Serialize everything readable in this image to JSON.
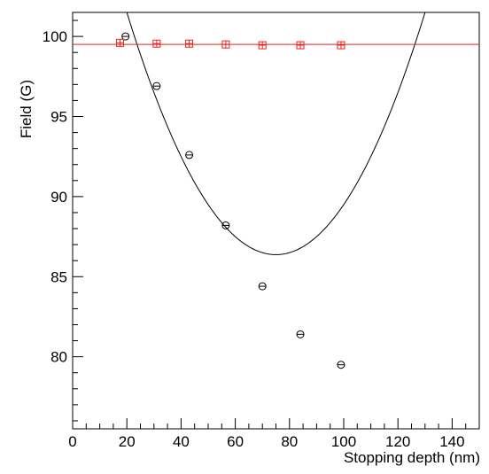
{
  "chart_data": {
    "type": "scatter",
    "title": "",
    "xlabel": "Stopping depth (nm)",
    "ylabel": "Field (G)",
    "xlim": [
      0,
      150
    ],
    "ylim": [
      75.5,
      101.5
    ],
    "x_ticks": [
      0,
      20,
      40,
      60,
      80,
      100,
      120,
      140
    ],
    "x_tick_labels": [
      "0",
      "20",
      "40",
      "60",
      "80",
      "100",
      "120",
      "140"
    ],
    "y_ticks": [
      80,
      85,
      90,
      95,
      100
    ],
    "y_tick_labels": [
      "80",
      "85",
      "90",
      "95",
      "100"
    ],
    "grid": false,
    "legend": "none",
    "series": [
      {
        "marker": "open-circle",
        "color": "#000000",
        "points": [
          {
            "x": 19.5,
            "y": 100.0
          },
          {
            "x": 31.0,
            "y": 96.9
          },
          {
            "x": 43.0,
            "y": 92.6
          },
          {
            "x": 56.5,
            "y": 88.2
          },
          {
            "x": 70.0,
            "y": 84.4
          },
          {
            "x": 84.0,
            "y": 81.4
          },
          {
            "x": 99.0,
            "y": 79.5
          }
        ]
      },
      {
        "marker": "open-square",
        "color": "#e8231f",
        "points": [
          {
            "x": 17.5,
            "y": 99.6
          },
          {
            "x": 31.0,
            "y": 99.55
          },
          {
            "x": 43.0,
            "y": 99.55
          },
          {
            "x": 56.5,
            "y": 99.5
          },
          {
            "x": 70.0,
            "y": 99.45
          },
          {
            "x": 84.0,
            "y": 99.45
          },
          {
            "x": 99.0,
            "y": 99.45
          }
        ]
      }
    ],
    "fits": [
      {
        "kind": "quadratic",
        "color": "#000000",
        "x_range": [
          18.5,
          150
        ],
        "y_at_20": 101.5,
        "y_at_40": 92.5,
        "y_at_60": 87.5
      }
    ],
    "reference_lines": [
      {
        "kind": "horizontal",
        "y": 99.5,
        "color": "#e8231f"
      }
    ]
  }
}
